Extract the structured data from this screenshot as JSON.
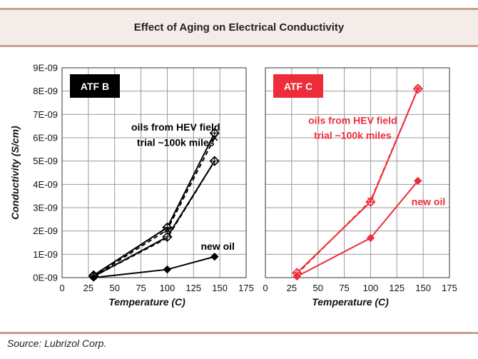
{
  "title": "Effect of Aging on Electrical Conductivity",
  "source": "Source: Lubrizol Corp.",
  "colors": {
    "atf_b": "#000000",
    "atf_c": "#ee2d3a",
    "rule": "#c9a08f",
    "header_bg": "#f4ece8"
  },
  "chart_data": [
    {
      "type": "line",
      "label": "ATF B",
      "xlabel": "Temperature (C)",
      "ylabel": "Conductivity (S/cm)",
      "xlim": [
        0,
        175
      ],
      "ylim": [
        0,
        9e-09
      ],
      "xticks": [
        "0",
        "25",
        "50",
        "75",
        "100",
        "125",
        "150",
        "175"
      ],
      "yticks": [
        "0E-09",
        "1E-09",
        "2E-09",
        "3E-09",
        "4E-09",
        "5E-09",
        "6E-09",
        "7E-09",
        "8E-09",
        "9E-09"
      ],
      "grid": true,
      "annotations": [
        {
          "text": "oils from HEV field",
          "x": 108,
          "y": 6.3e-09
        },
        {
          "text": "trial ~100k miles",
          "x": 108,
          "y": 5.65e-09
        },
        {
          "text": "new oil",
          "x": 148,
          "y": 1.2e-09
        }
      ],
      "series": [
        {
          "x": [
            30,
            100,
            145
          ],
          "y": [
            1e-10,
            2.15e-09,
            6.2e-09
          ],
          "style": "solid",
          "marker": "diamond-plus-open"
        },
        {
          "x": [
            30,
            100,
            145
          ],
          "y": [
            5e-11,
            2.05e-09,
            6e-09
          ],
          "style": "dashed",
          "marker": "x"
        },
        {
          "x": [
            30,
            100,
            145
          ],
          "y": [
            5e-11,
            1.75e-09,
            5e-09
          ],
          "style": "solid",
          "marker": "diamond-plus-open"
        },
        {
          "x": [
            30,
            100,
            145
          ],
          "y": [
            5e-11,
            1.7e-09,
            5e-09
          ],
          "style": "dashed",
          "marker": "none"
        },
        {
          "x": [
            30,
            100,
            145
          ],
          "y": [
            0.0,
            3.5e-10,
            9e-10
          ],
          "style": "solid",
          "marker": "diamond-filled"
        }
      ]
    },
    {
      "type": "line",
      "label": "ATF C",
      "xlabel": "Temperature (C)",
      "ylabel": "",
      "xlim": [
        0,
        175
      ],
      "ylim": [
        0,
        9e-09
      ],
      "xticks": [
        "0",
        "25",
        "50",
        "75",
        "100",
        "125",
        "150",
        "175"
      ],
      "yticks": [],
      "grid": true,
      "annotations": [
        {
          "text": "oils from HEV field",
          "x": 83,
          "y": 6.6e-09
        },
        {
          "text": "trial ~100k miles",
          "x": 83,
          "y": 5.95e-09
        },
        {
          "text": "new oil",
          "x": 155,
          "y": 3.1e-09
        }
      ],
      "series": [
        {
          "x": [
            30,
            100,
            145
          ],
          "y": [
            2e-10,
            3.25e-09,
            8.1e-09
          ],
          "style": "solid",
          "marker": "diamond-plus-open"
        },
        {
          "x": [
            30,
            100,
            145
          ],
          "y": [
            1.5e-10,
            3.3e-09,
            8.1e-09
          ],
          "style": "dashed",
          "marker": "x"
        },
        {
          "x": [
            30,
            100,
            145
          ],
          "y": [
            5e-11,
            1.7e-09,
            4.15e-09
          ],
          "style": "solid",
          "marker": "diamond-filled"
        }
      ]
    }
  ]
}
